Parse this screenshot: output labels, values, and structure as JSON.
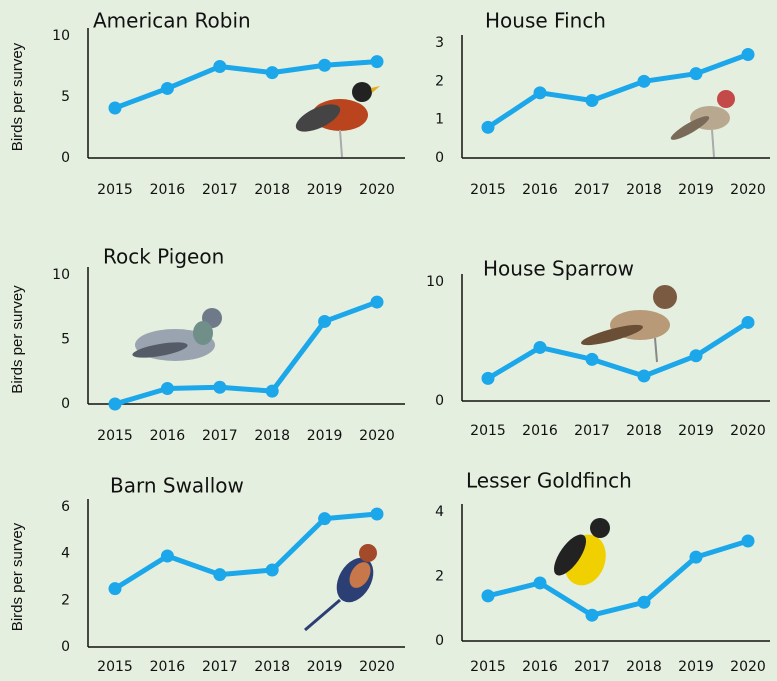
{
  "chart_data": [
    {
      "type": "line",
      "title": "American Robin",
      "y_label": "Birds per survey",
      "categories": [
        "2015",
        "2016",
        "2017",
        "2018",
        "2019",
        "2020"
      ],
      "values": [
        4.1,
        5.7,
        7.5,
        7.0,
        7.6,
        7.9
      ],
      "color": "#1ba7ea",
      "ylim": [
        0,
        10
      ],
      "yticks": [
        0,
        5,
        10
      ]
    },
    {
      "type": "line",
      "title": "House Finch",
      "categories": [
        "2015",
        "2016",
        "2017",
        "2018",
        "2019",
        "2020"
      ],
      "values": [
        0.8,
        1.7,
        1.5,
        2.0,
        2.2,
        2.7
      ],
      "color": "#1ba7ea",
      "ylim": [
        0,
        3
      ],
      "yticks": [
        0,
        1,
        2,
        3
      ]
    },
    {
      "type": "line",
      "title": "Rock Pigeon",
      "y_label": "Birds per survey",
      "categories": [
        "2015",
        "2016",
        "2017",
        "2018",
        "2019",
        "2020"
      ],
      "values": [
        0,
        1.2,
        1.3,
        1.0,
        6.4,
        7.9
      ],
      "color": "#1ba7ea",
      "ylim": [
        0,
        10
      ],
      "yticks": [
        0,
        5,
        10
      ]
    },
    {
      "type": "line",
      "title": "House Sparrow",
      "categories": [
        "2015",
        "2016",
        "2017",
        "2018",
        "2019",
        "2020"
      ],
      "values": [
        1.9,
        4.5,
        3.5,
        2.1,
        3.8,
        6.6
      ],
      "color": "#1ba7ea",
      "ylim": [
        0,
        10
      ],
      "yticks": [
        0,
        10
      ]
    },
    {
      "type": "line",
      "title": "Barn Swallow",
      "y_label": "Birds per survey",
      "categories": [
        "2015",
        "2016",
        "2017",
        "2018",
        "2019",
        "2020"
      ],
      "values": [
        2.5,
        3.9,
        3.1,
        3.3,
        5.5,
        5.7
      ],
      "color": "#1ba7ea",
      "ylim": [
        0,
        6
      ],
      "yticks": [
        0,
        2,
        4,
        6
      ]
    },
    {
      "type": "line",
      "title": "Lesser Goldfinch",
      "categories": [
        "2015",
        "2016",
        "2017",
        "2018",
        "2019",
        "2020"
      ],
      "values": [
        1.4,
        1.8,
        0.8,
        1.2,
        2.6,
        3.1
      ],
      "color": "#1ba7ea",
      "ylim": [
        0,
        4
      ],
      "yticks": [
        0,
        2,
        4
      ]
    }
  ]
}
